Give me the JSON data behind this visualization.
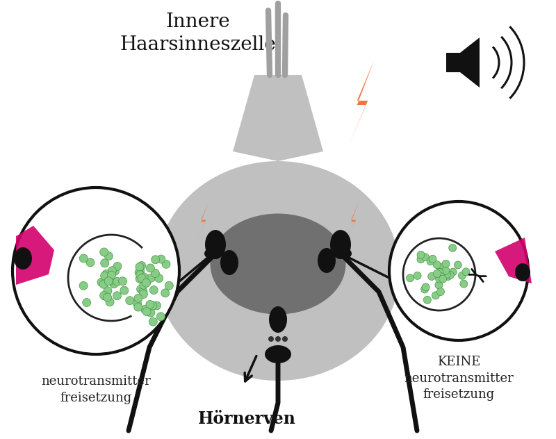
{
  "title": "Innere\nHaarsinneszelle",
  "title_fontsize": 20,
  "bg_color": "#ffffff",
  "cell_color": "#c0c0c0",
  "nucleus_color": "#707070",
  "stereocilia_color": "#a0a0a0",
  "lightning_color": "#f07840",
  "pink_color": "#d4006e",
  "vesicle_color": "#88cc88",
  "vesicle_edge": "#449944",
  "nerve_color": "#111111",
  "label_left": "neurotransmitter\nfreisetzung",
  "label_right": "KEINE\nneurotransmitter\nfreisetzung",
  "label_bottom": "Hörnerven",
  "label_fontsize": 13,
  "hornerven_fontsize": 17
}
